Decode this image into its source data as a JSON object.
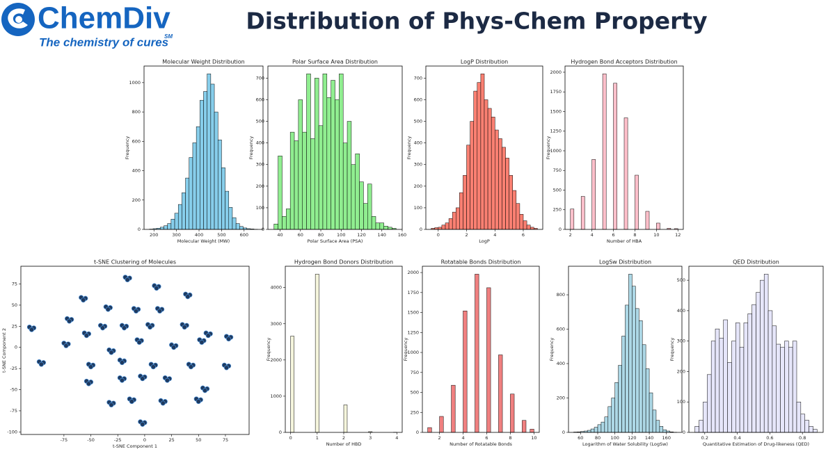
{
  "header": {
    "logo_name": "ChemDiv",
    "logo_tagline": "The chemistry of cures",
    "logo_mark": "SM",
    "title": "Distribution of Phys-Chem Property"
  },
  "chart_data": [
    {
      "type": "histogram",
      "title": "Molecular Weight Distribution",
      "x_label": "Molecular Weight (MW)",
      "y_label": "Frequency",
      "color": "#87ceeb",
      "bins": [
        180,
        196,
        212,
        228,
        244,
        260,
        276,
        292,
        308,
        324,
        340,
        356,
        372,
        388,
        404,
        420,
        436,
        452,
        468,
        484,
        500,
        516,
        532,
        548,
        564,
        580,
        596,
        612,
        628,
        644,
        660
      ],
      "values": [
        2,
        5,
        8,
        15,
        25,
        40,
        70,
        110,
        170,
        250,
        350,
        490,
        590,
        700,
        880,
        940,
        1060,
        990,
        800,
        610,
        420,
        260,
        150,
        80,
        40,
        20,
        10,
        5,
        3,
        1
      ],
      "xlim": [
        156,
        684
      ],
      "xticks": [
        200,
        300,
        400,
        500,
        600
      ],
      "ylim": [
        0,
        1113
      ],
      "yticks": [
        0,
        200,
        400,
        600,
        800,
        1000
      ]
    },
    {
      "type": "histogram",
      "title": "Polar Surface Area Distribution",
      "x_label": "Polar Surface Area (PSA)",
      "y_label": "Frequency",
      "color": "#90ee90",
      "bins": [
        34,
        38,
        42,
        46,
        50,
        54,
        58,
        62,
        66,
        70,
        74,
        78,
        82,
        86,
        90,
        94,
        98,
        102,
        106,
        110,
        114,
        118,
        122,
        126,
        130,
        134,
        138,
        142,
        146,
        150,
        154
      ],
      "values": [
        25,
        340,
        60,
        95,
        450,
        410,
        600,
        450,
        720,
        420,
        700,
        480,
        720,
        610,
        690,
        600,
        720,
        400,
        500,
        300,
        350,
        220,
        120,
        210,
        60,
        30,
        30,
        15,
        10,
        5
      ],
      "xlim": [
        28,
        160
      ],
      "xticks": [
        40,
        60,
        80,
        100,
        120,
        140,
        160
      ],
      "ylim": [
        0,
        756
      ],
      "yticks": [
        0,
        100,
        200,
        300,
        400,
        500,
        600,
        700
      ]
    },
    {
      "type": "histogram",
      "title": "LogP Distribution",
      "x_label": "LogP",
      "y_label": "Frequency",
      "color": "#fa8072",
      "bins": [
        -0.5,
        -0.25,
        0,
        0.25,
        0.5,
        0.75,
        1,
        1.25,
        1.5,
        1.75,
        2,
        2.25,
        2.5,
        2.75,
        3,
        3.25,
        3.5,
        3.75,
        4,
        4.25,
        4.5,
        4.75,
        5,
        5.25,
        5.5,
        5.75,
        6,
        6.25,
        6.5,
        6.75,
        7
      ],
      "values": [
        5,
        8,
        10,
        20,
        30,
        50,
        80,
        100,
        170,
        250,
        390,
        500,
        640,
        680,
        720,
        600,
        560,
        520,
        460,
        420,
        380,
        330,
        250,
        180,
        120,
        70,
        40,
        20,
        10,
        5
      ],
      "xlim": [
        -0.875,
        7.375
      ],
      "xticks": [
        0,
        2,
        4,
        6
      ],
      "ylim": [
        0,
        756
      ],
      "yticks": [
        0,
        100,
        200,
        300,
        400,
        500,
        600,
        700
      ]
    },
    {
      "type": "histogram",
      "title": "Hydrogen Bond Acceptors Distribution",
      "x_label": "Number of HBA",
      "y_label": "Frequency",
      "color": "#ffc0cb",
      "bins": [
        2,
        2.33,
        2.67,
        3,
        3.33,
        3.67,
        4,
        4.33,
        4.67,
        5,
        5.33,
        5.67,
        6,
        6.33,
        6.67,
        7,
        7.33,
        7.67,
        8,
        8.33,
        8.67,
        9,
        9.33,
        9.67,
        10,
        10.33,
        10.67,
        11,
        11.33,
        11.67,
        12
      ],
      "values": [
        260,
        0,
        0,
        420,
        0,
        0,
        890,
        0,
        0,
        1980,
        0,
        0,
        1860,
        0,
        0,
        1420,
        0,
        0,
        690,
        0,
        0,
        230,
        0,
        0,
        80,
        0,
        0,
        15,
        0,
        10
      ],
      "xlim": [
        1.5,
        12.5
      ],
      "xticks": [
        2,
        4,
        6,
        8,
        10,
        12
      ],
      "ylim": [
        0,
        2079
      ],
      "yticks": [
        0,
        250,
        500,
        750,
        1000,
        1250,
        1500,
        1750,
        2000
      ]
    },
    {
      "type": "scatter",
      "title": "t-SNE Clustering of Molecules",
      "x_label": "t-SNE Component 1",
      "y_label": "t-SNE Component 2",
      "color": "#1f3a5f",
      "x": [
        -18,
        -14,
        -16,
        9,
        13,
        11,
        38,
        42,
        40,
        -59,
        -55,
        -57,
        -36,
        -32,
        -34,
        -10,
        -6,
        -8,
        12,
        16,
        14,
        -72,
        -68,
        -70,
        -41,
        -37,
        -39,
        -21,
        -17,
        -19,
        3,
        7,
        5,
        35,
        39,
        37,
        57,
        61,
        59,
        76,
        80,
        78,
        -107,
        -103,
        -105,
        -75,
        -71,
        -73,
        -56,
        -52,
        -54,
        -33,
        -29,
        -31,
        -7,
        -3,
        -5,
        25,
        29,
        27,
        51,
        55,
        53,
        -98,
        -94,
        -96,
        -52,
        -48,
        -50,
        -23,
        -19,
        -21,
        6,
        10,
        8,
        41,
        45,
        43,
        74,
        78,
        76,
        -54,
        -50,
        -52,
        -23,
        -19,
        -21,
        -4,
        0,
        -2,
        19,
        23,
        21,
        54,
        58,
        56,
        -33,
        -29,
        -31,
        -14,
        -10,
        -12,
        15,
        19,
        17,
        48,
        52,
        50,
        -4,
        0,
        -2
      ],
      "y": [
        83,
        82,
        80,
        73,
        72,
        70,
        63,
        62,
        60,
        59,
        58,
        56,
        48,
        47,
        45,
        46,
        45,
        43,
        46,
        45,
        43,
        34,
        33,
        31,
        26,
        25,
        23,
        26,
        25,
        23,
        27,
        26,
        24,
        27,
        26,
        24,
        17,
        16,
        14,
        13,
        12,
        10,
        24,
        23,
        21,
        5,
        4,
        2,
        17,
        16,
        14,
        -3,
        -4,
        -6,
        9,
        8,
        6,
        3,
        2,
        0,
        9,
        8,
        6,
        -17,
        -18,
        -20,
        -20,
        -21,
        -23,
        -15,
        -16,
        -18,
        -20,
        -21,
        -23,
        -20,
        -21,
        -23,
        -21,
        -22,
        -24,
        -40,
        -41,
        -43,
        -36,
        -37,
        -39,
        -34,
        -35,
        -37,
        -36,
        -37,
        -39,
        -48,
        -49,
        -51,
        -65,
        -66,
        -68,
        -61,
        -62,
        -64,
        -63,
        -64,
        -66,
        -61,
        -62,
        -64,
        -88,
        -89,
        -91
      ],
      "xlim": [
        -115,
        97
      ],
      "xticks": [
        -75,
        -50,
        -25,
        0,
        25,
        50,
        75
      ],
      "ylim": [
        -103,
        96
      ],
      "yticks": [
        -100,
        -75,
        -50,
        -25,
        0,
        25,
        50,
        75
      ]
    },
    {
      "type": "histogram",
      "title": "Hydrogen Bond Donors Distribution",
      "x_label": "Number of HBD",
      "y_label": "Frequency",
      "color": "#f5f5dc",
      "bins": [
        0,
        0.13,
        0.27,
        0.4,
        0.53,
        0.67,
        0.8,
        0.93,
        1.07,
        1.2,
        1.33,
        1.47,
        1.6,
        1.73,
        1.87,
        2,
        2.13,
        2.27,
        2.4,
        2.53,
        2.67,
        2.8,
        2.93,
        3.07,
        3.2,
        3.33,
        3.47,
        3.6,
        3.73,
        3.87,
        4
      ],
      "values": [
        2660,
        0,
        0,
        0,
        0,
        0,
        0,
        4370,
        0,
        0,
        0,
        0,
        0,
        0,
        0,
        760,
        0,
        0,
        0,
        0,
        0,
        0,
        20,
        0,
        0,
        0,
        0,
        0,
        0,
        5
      ],
      "xlim": [
        -0.2,
        4.2
      ],
      "xticks": [
        0,
        1,
        2,
        3,
        4
      ],
      "ylim": [
        0,
        4589
      ],
      "yticks": [
        0,
        1000,
        2000,
        3000,
        4000
      ]
    },
    {
      "type": "histogram",
      "title": "Rotatable Bonds Distribution",
      "x_label": "Number of Rotatable Bonds",
      "y_label": "Frequency",
      "color": "#f08080",
      "bins": [
        1,
        1.33,
        1.67,
        2,
        2.33,
        2.67,
        3,
        3.33,
        3.67,
        4,
        4.33,
        4.67,
        5,
        5.33,
        5.67,
        6,
        6.33,
        6.67,
        7,
        7.33,
        7.67,
        8,
        8.33,
        8.67,
        9,
        9.33,
        9.67,
        10
      ],
      "values": [
        60,
        0,
        0,
        200,
        0,
        0,
        590,
        0,
        0,
        1520,
        0,
        0,
        1980,
        0,
        0,
        1810,
        0,
        0,
        970,
        0,
        0,
        480,
        0,
        0,
        150,
        0,
        40
      ],
      "xlim": [
        0.55,
        10.45
      ],
      "xticks": [
        2,
        4,
        6,
        8,
        10
      ],
      "ylim": [
        0,
        2079
      ],
      "yticks": [
        0,
        250,
        500,
        750,
        1000,
        1250,
        1500,
        1750,
        2000
      ]
    },
    {
      "type": "histogram",
      "title": "LogSw Distribution",
      "x_label": "Logarithm of Water Solubility (LogSw)",
      "y_label": "Frequency",
      "color": "#add8e6",
      "bins": [
        52,
        56,
        60,
        64,
        68,
        72,
        76,
        80,
        84,
        88,
        92,
        96,
        100,
        104,
        108,
        112,
        116,
        120,
        124,
        128,
        132,
        136,
        140,
        144,
        148,
        152,
        156,
        160,
        164,
        168,
        172
      ],
      "values": [
        2,
        3,
        5,
        8,
        12,
        20,
        30,
        45,
        60,
        90,
        150,
        200,
        290,
        390,
        560,
        740,
        920,
        850,
        720,
        650,
        510,
        370,
        230,
        130,
        70,
        35,
        15,
        8,
        3,
        1
      ],
      "xlim": [
        46,
        178
      ],
      "xticks": [
        60,
        80,
        100,
        120,
        140,
        160
      ],
      "ylim": [
        0,
        966
      ],
      "yticks": [
        0,
        200,
        400,
        600,
        800
      ]
    },
    {
      "type": "histogram",
      "title": "QED Distribution",
      "x_label": "Quantitative Estimation of Drug-likeness (QED)",
      "y_label": "Frequency",
      "color": "#e6e6fa",
      "bins": [
        0.14,
        0.165,
        0.19,
        0.215,
        0.24,
        0.265,
        0.29,
        0.315,
        0.34,
        0.365,
        0.39,
        0.415,
        0.44,
        0.465,
        0.49,
        0.515,
        0.54,
        0.565,
        0.59,
        0.615,
        0.64,
        0.665,
        0.69,
        0.715,
        0.74,
        0.765,
        0.79,
        0.815,
        0.84,
        0.865,
        0.89
      ],
      "values": [
        20,
        40,
        100,
        190,
        300,
        340,
        310,
        370,
        230,
        300,
        360,
        280,
        360,
        390,
        420,
        460,
        500,
        520,
        400,
        350,
        290,
        280,
        300,
        280,
        300,
        100,
        60,
        40,
        20,
        10
      ],
      "xlim": [
        0.1025,
        0.9275
      ],
      "xticks": [
        0.2,
        0.4,
        0.6,
        0.8
      ],
      "ylim": [
        0,
        546
      ],
      "yticks": [
        0,
        100,
        200,
        300,
        400,
        500
      ]
    }
  ]
}
